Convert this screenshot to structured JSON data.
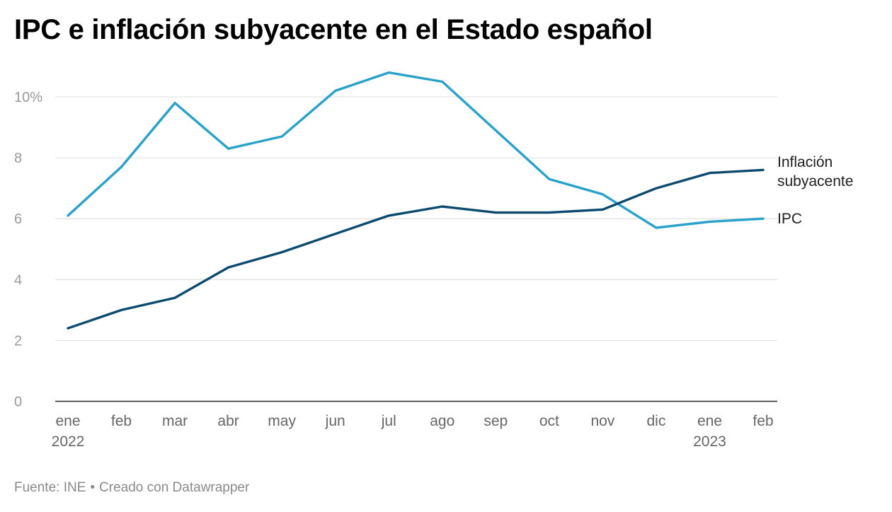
{
  "title": "IPC e inflación subyacente en el Estado español",
  "footer": {
    "source": "Fuente: INE",
    "separator": "•",
    "credit": "Creado con Datawrapper"
  },
  "chart_data": {
    "type": "line",
    "categories": [
      "ene 2022",
      "feb",
      "mar",
      "abr",
      "may",
      "jun",
      "jul",
      "ago",
      "sep",
      "oct",
      "nov",
      "dic",
      "ene 2023",
      "feb"
    ],
    "x_tick_labels": [
      {
        "label": "ene",
        "sub": "2022"
      },
      {
        "label": "feb",
        "sub": ""
      },
      {
        "label": "mar",
        "sub": ""
      },
      {
        "label": "abr",
        "sub": ""
      },
      {
        "label": "may",
        "sub": ""
      },
      {
        "label": "jun",
        "sub": ""
      },
      {
        "label": "jul",
        "sub": ""
      },
      {
        "label": "ago",
        "sub": ""
      },
      {
        "label": "sep",
        "sub": ""
      },
      {
        "label": "oct",
        "sub": ""
      },
      {
        "label": "nov",
        "sub": ""
      },
      {
        "label": "dic",
        "sub": ""
      },
      {
        "label": "ene",
        "sub": "2023"
      },
      {
        "label": "feb",
        "sub": ""
      }
    ],
    "y_ticks": [
      {
        "value": 0,
        "label": "0"
      },
      {
        "value": 2,
        "label": "2"
      },
      {
        "value": 4,
        "label": "4"
      },
      {
        "value": 6,
        "label": "6"
      },
      {
        "value": 8,
        "label": "8"
      },
      {
        "value": 10,
        "label": "10%"
      }
    ],
    "ylim": [
      0,
      10.8
    ],
    "grid": true,
    "series": [
      {
        "name": "IPC",
        "label_lines": [
          "IPC"
        ],
        "color": "#2aa1c9",
        "values": [
          6.1,
          7.7,
          9.8,
          8.3,
          8.7,
          10.2,
          10.8,
          10.5,
          8.9,
          7.3,
          6.8,
          5.7,
          5.9,
          6.0
        ]
      },
      {
        "name": "Inflación subyacente",
        "label_lines": [
          "Inflación",
          "subyacente"
        ],
        "color": "#0b4a6e",
        "values": [
          2.4,
          3.0,
          3.4,
          4.4,
          4.9,
          5.5,
          6.1,
          6.4,
          6.2,
          6.2,
          6.3,
          7.0,
          7.5,
          7.6
        ]
      }
    ],
    "colors": {
      "grid": "#e3e3e3",
      "axis": "#222222",
      "tick_text": "#9a9a9a"
    }
  }
}
